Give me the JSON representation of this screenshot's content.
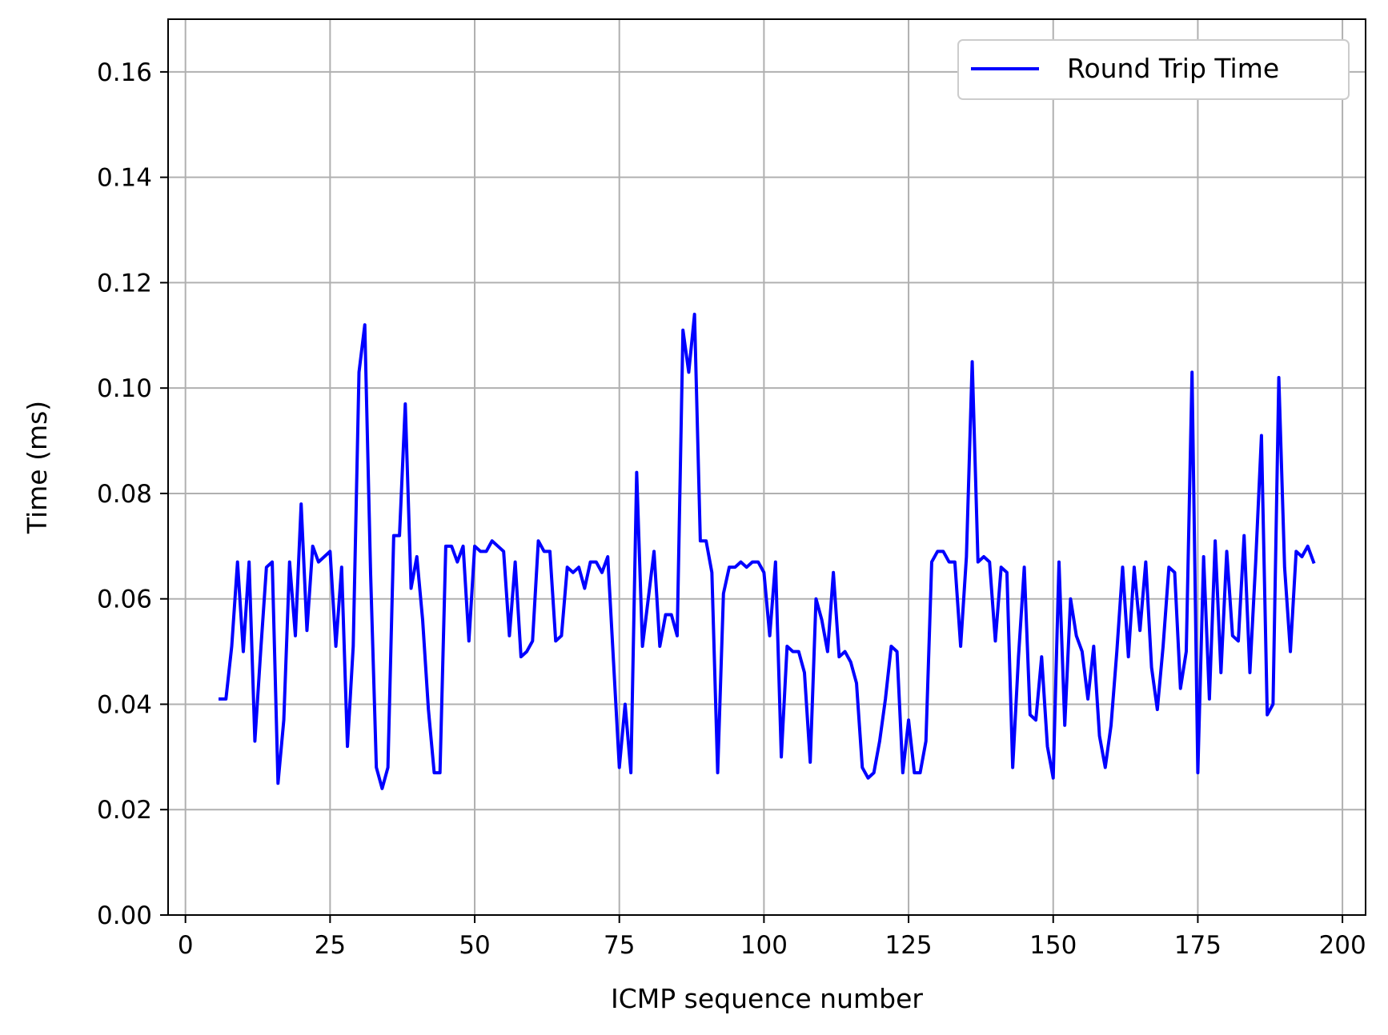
{
  "chart_data": {
    "type": "line",
    "title": "",
    "xlabel": "ICMP sequence number",
    "ylabel": "Time (ms)",
    "xlim": [
      -3,
      204
    ],
    "ylim": [
      0,
      0.17
    ],
    "xticks": [
      0,
      25,
      50,
      75,
      100,
      125,
      150,
      175,
      200
    ],
    "yticks": [
      0.0,
      0.02,
      0.04,
      0.06,
      0.08,
      0.1,
      0.12,
      0.14,
      0.16
    ],
    "xtick_labels": [
      "0",
      "25",
      "50",
      "75",
      "100",
      "125",
      "150",
      "175",
      "200"
    ],
    "ytick_labels": [
      "0.00",
      "0.02",
      "0.04",
      "0.06",
      "0.08",
      "0.10",
      "0.12",
      "0.14",
      "0.16"
    ],
    "grid": true,
    "legend_position": "top-right",
    "series": [
      {
        "name": "Round Trip Time",
        "color": "#0000ff",
        "x": [
          6,
          7,
          8,
          9,
          10,
          11,
          12,
          13,
          14,
          15,
          16,
          17,
          18,
          19,
          20,
          21,
          22,
          23,
          24,
          25,
          26,
          27,
          28,
          29,
          30,
          31,
          32,
          33,
          34,
          35,
          36,
          37,
          38,
          39,
          40,
          41,
          42,
          43,
          44,
          45,
          46,
          47,
          48,
          49,
          50,
          51,
          52,
          53,
          54,
          55,
          56,
          57,
          58,
          59,
          60,
          61,
          62,
          63,
          64,
          65,
          66,
          67,
          68,
          69,
          70,
          71,
          72,
          73,
          74,
          75,
          76,
          77,
          78,
          79,
          80,
          81,
          82,
          83,
          84,
          85,
          86,
          87,
          88,
          89,
          90,
          91,
          92,
          93,
          94,
          95,
          96,
          97,
          98,
          99,
          100,
          101,
          102,
          103,
          104,
          105,
          106,
          107,
          108,
          109,
          110,
          111,
          112,
          113,
          114,
          115,
          116,
          117,
          118,
          119,
          120,
          121,
          122,
          123,
          124,
          125,
          126,
          127,
          128,
          129,
          130,
          131,
          132,
          133,
          134,
          135,
          136,
          137,
          138,
          139,
          140,
          141,
          142,
          143,
          144,
          145,
          146,
          147,
          148,
          149,
          150,
          151,
          152,
          153,
          154,
          155,
          156,
          157,
          158,
          159,
          160,
          161,
          162,
          163,
          164,
          165,
          166,
          167,
          168,
          169,
          170,
          171,
          172,
          173,
          174,
          175,
          176,
          177,
          178,
          179,
          180,
          181,
          182,
          183,
          184,
          185,
          186,
          187,
          188,
          189,
          190,
          191,
          192,
          193,
          194,
          195
        ],
        "y": [
          0.041,
          0.041,
          0.051,
          0.067,
          0.05,
          0.067,
          0.033,
          0.05,
          0.066,
          0.067,
          0.025,
          0.037,
          0.067,
          0.053,
          0.078,
          0.054,
          0.07,
          0.067,
          0.068,
          0.069,
          0.051,
          0.066,
          0.032,
          0.051,
          0.103,
          0.112,
          0.065,
          0.028,
          0.024,
          0.028,
          0.072,
          0.072,
          0.097,
          0.062,
          0.068,
          0.056,
          0.039,
          0.027,
          0.027,
          0.07,
          0.07,
          0.067,
          0.07,
          0.052,
          0.07,
          0.069,
          0.069,
          0.071,
          0.07,
          0.069,
          0.053,
          0.067,
          0.049,
          0.05,
          0.052,
          0.071,
          0.069,
          0.069,
          0.052,
          0.053,
          0.066,
          0.065,
          0.066,
          0.062,
          0.067,
          0.067,
          0.065,
          0.068,
          0.048,
          0.028,
          0.04,
          0.027,
          0.084,
          0.051,
          0.06,
          0.069,
          0.051,
          0.057,
          0.057,
          0.053,
          0.111,
          0.103,
          0.114,
          0.071,
          0.071,
          0.065,
          0.027,
          0.061,
          0.066,
          0.066,
          0.067,
          0.066,
          0.067,
          0.067,
          0.065,
          0.053,
          0.067,
          0.03,
          0.051,
          0.05,
          0.05,
          0.046,
          0.029,
          0.06,
          0.056,
          0.05,
          0.065,
          0.049,
          0.05,
          0.048,
          0.044,
          0.028,
          0.026,
          0.027,
          0.033,
          0.041,
          0.051,
          0.05,
          0.027,
          0.037,
          0.027,
          0.027,
          0.033,
          0.067,
          0.069,
          0.069,
          0.067,
          0.067,
          0.051,
          0.068,
          0.105,
          0.067,
          0.068,
          0.067,
          0.052,
          0.066,
          0.065,
          0.028,
          0.049,
          0.066,
          0.038,
          0.037,
          0.049,
          0.032,
          0.026,
          0.067,
          0.036,
          0.06,
          0.053,
          0.05,
          0.041,
          0.051,
          0.034,
          0.028,
          0.036,
          0.05,
          0.066,
          0.049,
          0.066,
          0.054,
          0.067,
          0.047,
          0.039,
          0.051,
          0.066,
          0.065,
          0.043,
          0.05,
          0.103,
          0.027,
          0.068,
          0.041,
          0.071,
          0.046,
          0.069,
          0.053,
          0.052,
          0.072,
          0.046,
          0.067,
          0.091,
          0.038,
          0.04,
          0.102,
          0.066,
          0.05,
          0.069,
          0.068,
          0.07,
          0.067
        ]
      }
    ]
  }
}
